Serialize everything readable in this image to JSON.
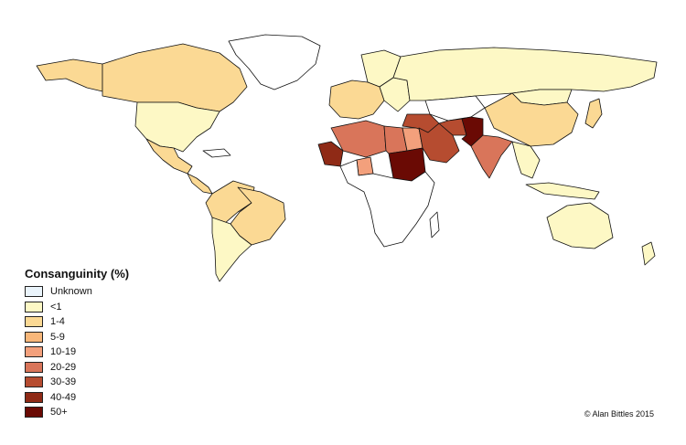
{
  "legend": {
    "title": "Consanguinity (%)",
    "items": [
      {
        "label": "Unknown",
        "color": "#eaf4fb"
      },
      {
        "label": "<1",
        "color": "#fdf8c5"
      },
      {
        "label": "1-4",
        "color": "#fbd994"
      },
      {
        "label": "5-9",
        "color": "#f8b77a"
      },
      {
        "label": "10-19",
        "color": "#f3a07c"
      },
      {
        "label": "20-29",
        "color": "#d9755a"
      },
      {
        "label": "30-39",
        "color": "#b64c30"
      },
      {
        "label": "40-49",
        "color": "#8f2a16"
      },
      {
        "label": "50+",
        "color": "#6a0a04"
      }
    ]
  },
  "credit": "© Alan Bittles 2015",
  "regions": [
    {
      "name": "greenland",
      "category": "Unknown"
    },
    {
      "name": "canada",
      "category": "1-4"
    },
    {
      "name": "alaska",
      "category": "1-4"
    },
    {
      "name": "united-states",
      "category": "<1"
    },
    {
      "name": "mexico",
      "category": "1-4"
    },
    {
      "name": "central-america",
      "category": "1-4"
    },
    {
      "name": "south-america-north",
      "category": "1-4"
    },
    {
      "name": "brazil",
      "category": "1-4"
    },
    {
      "name": "south-america-south",
      "category": "<1"
    },
    {
      "name": "europe-west",
      "category": "1-4"
    },
    {
      "name": "scandinavia",
      "category": "<1"
    },
    {
      "name": "eastern-europe",
      "category": "<1"
    },
    {
      "name": "russia",
      "category": "<1"
    },
    {
      "name": "central-asia",
      "category": "Unknown"
    },
    {
      "name": "china",
      "category": "1-4"
    },
    {
      "name": "mongolia",
      "category": "<1"
    },
    {
      "name": "japan",
      "category": "1-4"
    },
    {
      "name": "north-africa-west",
      "category": "20-29"
    },
    {
      "name": "north-africa-east",
      "category": "20-29"
    },
    {
      "name": "egypt",
      "category": "10-19"
    },
    {
      "name": "mauritania",
      "category": "40-49"
    },
    {
      "name": "sudan",
      "category": "50+"
    },
    {
      "name": "sub-saharan-africa",
      "category": "Unknown"
    },
    {
      "name": "nigeria",
      "category": "10-19"
    },
    {
      "name": "arabian-peninsula",
      "category": "30-39"
    },
    {
      "name": "middle-east",
      "category": "30-39"
    },
    {
      "name": "iran",
      "category": "30-39"
    },
    {
      "name": "pakistan-afghanistan",
      "category": "50+"
    },
    {
      "name": "india",
      "category": "20-29"
    },
    {
      "name": "southeast-asia",
      "category": "<1"
    },
    {
      "name": "indonesia",
      "category": "<1"
    },
    {
      "name": "australia",
      "category": "<1"
    },
    {
      "name": "new-zealand",
      "category": "<1"
    }
  ]
}
